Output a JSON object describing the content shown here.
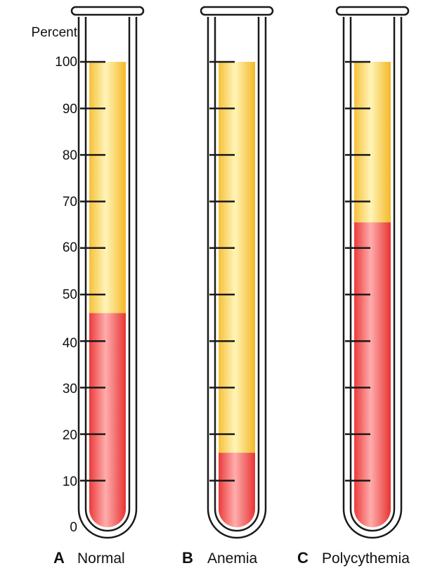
{
  "axis": {
    "title": "Percent",
    "ticks": [
      "100",
      "90",
      "80",
      "70",
      "60",
      "50",
      "40",
      "30",
      "20",
      "10",
      "0"
    ]
  },
  "tubes": [
    {
      "letter": "A",
      "name": "Normal",
      "red_cell_percent": 46
    },
    {
      "letter": "B",
      "name": "Anemia",
      "red_cell_percent": 16
    },
    {
      "letter": "C",
      "name": "Polycythemia",
      "red_cell_percent": 65.5
    }
  ],
  "colors": {
    "plasma": "#f7c948",
    "plasma_highlight": "#fff3b0",
    "red_cells": "#ef4a4a",
    "red_cells_highlight": "#ffb3b3",
    "outline": "#1a1a1a"
  }
}
